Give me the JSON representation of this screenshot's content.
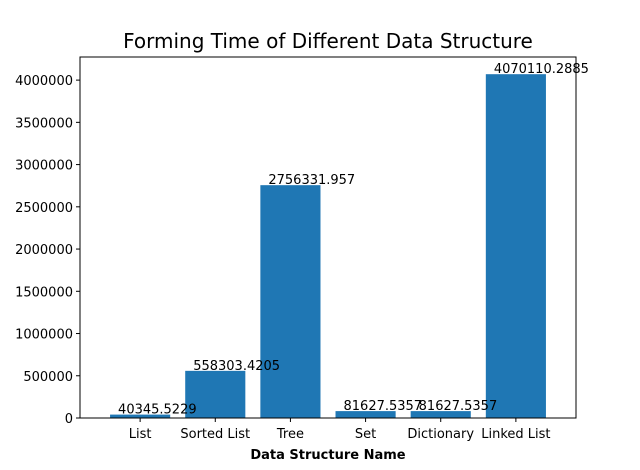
{
  "chart_data": {
    "type": "bar",
    "title": "Forming Time of Different Data Structure",
    "xlabel": "Data Structure Name",
    "ylabel": "",
    "categories": [
      "List",
      "Sorted List",
      "Tree",
      "Set",
      "Dictionary",
      "Linked List"
    ],
    "values": [
      40345.5229,
      558303.4205,
      2756331.957,
      81627.5357,
      81627.5357,
      4070110.2885
    ],
    "value_labels": [
      "40345.5229",
      "558303.4205",
      "2756331.957",
      "81627.5357",
      "81627.5357",
      "4070110.2885"
    ],
    "ylim": [
      0,
      4273615.8029
    ],
    "yticks": [
      0,
      500000,
      1000000,
      1500000,
      2000000,
      2500000,
      3000000,
      3500000,
      4000000
    ],
    "ytick_labels": [
      "0",
      "500000",
      "1000000",
      "1500000",
      "2000000",
      "2500000",
      "3000000",
      "3500000",
      "4000000"
    ],
    "bar_color": "#1f77b4",
    "grid": false,
    "legend": "none"
  }
}
